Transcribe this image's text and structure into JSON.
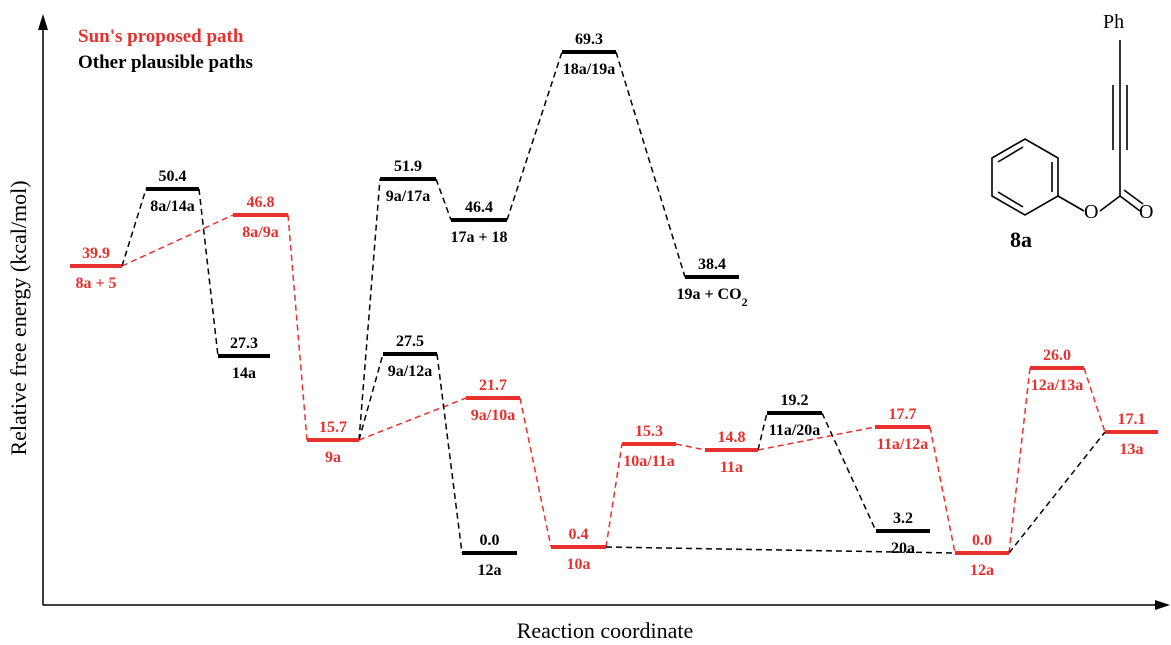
{
  "legend": {
    "proposed": "Sun's proposed path",
    "other": "Other plausible paths"
  },
  "axes": {
    "xlabel": "Reaction coordinate",
    "ylabel": "Relative free energy (kcal/mol)"
  },
  "colors": {
    "proposed": "#e8312f",
    "other": "#000000"
  },
  "molecule": {
    "name": "8a",
    "ph": "Ph",
    "o_ring": "O",
    "o_carbonyl": "O"
  },
  "levels": [
    {
      "id": "L0",
      "path": "proposed",
      "energy": "39.9",
      "label": "8a + 5"
    },
    {
      "id": "L1",
      "path": "other",
      "energy": "50.4",
      "label": "8a/14a"
    },
    {
      "id": "L2",
      "path": "proposed",
      "energy": "46.8",
      "label": "8a/9a"
    },
    {
      "id": "L3",
      "path": "other",
      "energy": "27.3",
      "label": "14a"
    },
    {
      "id": "L4",
      "path": "proposed",
      "energy": "15.7",
      "label": "9a"
    },
    {
      "id": "L5",
      "path": "other",
      "energy": "51.9",
      "label": "9a/17a"
    },
    {
      "id": "L6",
      "path": "other",
      "energy": "46.4",
      "label": "17a + 18"
    },
    {
      "id": "L7",
      "path": "other",
      "energy": "69.3",
      "label": "18a/19a"
    },
    {
      "id": "L8",
      "path": "other",
      "energy": "38.4",
      "label": "19a + CO",
      "sub": "2"
    },
    {
      "id": "L9",
      "path": "other",
      "energy": "27.5",
      "label": "9a/12a"
    },
    {
      "id": "L10",
      "path": "proposed",
      "energy": "21.7",
      "label": "9a/10a"
    },
    {
      "id": "L11",
      "path": "other",
      "energy": "0.0",
      "label": "12a"
    },
    {
      "id": "L12",
      "path": "proposed",
      "energy": "0.4",
      "label": "10a"
    },
    {
      "id": "L13",
      "path": "proposed",
      "energy": "15.3",
      "label": "10a/11a"
    },
    {
      "id": "L14",
      "path": "proposed",
      "energy": "14.8",
      "label": "11a"
    },
    {
      "id": "L15",
      "path": "other",
      "energy": "19.2",
      "label": "11a/20a"
    },
    {
      "id": "L16",
      "path": "proposed",
      "energy": "17.7",
      "label": "11a/12a"
    },
    {
      "id": "L17",
      "path": "other",
      "energy": "3.2",
      "label": "20a"
    },
    {
      "id": "L18",
      "path": "proposed",
      "energy": "0.0",
      "label": "12a"
    },
    {
      "id": "L19",
      "path": "proposed",
      "energy": "26.0",
      "label": "12a/13a"
    },
    {
      "id": "L20",
      "path": "proposed",
      "energy": "17.1",
      "label": "13a"
    }
  ],
  "connectors": [
    {
      "from": "L0",
      "to": "L2",
      "path": "proposed"
    },
    {
      "from": "L2",
      "to": "L4",
      "path": "proposed"
    },
    {
      "from": "L4",
      "to": "L10",
      "path": "proposed"
    },
    {
      "from": "L10",
      "to": "L12",
      "path": "proposed"
    },
    {
      "from": "L12",
      "to": "L13",
      "path": "proposed"
    },
    {
      "from": "L13",
      "to": "L14",
      "path": "proposed"
    },
    {
      "from": "L14",
      "to": "L16",
      "path": "proposed"
    },
    {
      "from": "L16",
      "to": "L18",
      "path": "proposed"
    },
    {
      "from": "L18",
      "to": "L19",
      "path": "proposed"
    },
    {
      "from": "L19",
      "to": "L20",
      "path": "proposed"
    },
    {
      "from": "L0",
      "to": "L1",
      "path": "other"
    },
    {
      "from": "L1",
      "to": "L3",
      "path": "other"
    },
    {
      "from": "L4",
      "to": "L5",
      "path": "other"
    },
    {
      "from": "L5",
      "to": "L6",
      "path": "other"
    },
    {
      "from": "L6",
      "to": "L7",
      "path": "other"
    },
    {
      "from": "L7",
      "to": "L8",
      "path": "other"
    },
    {
      "from": "L4",
      "to": "L9",
      "path": "other"
    },
    {
      "from": "L9",
      "to": "L11",
      "path": "other"
    },
    {
      "from": "L14",
      "to": "L15",
      "path": "other"
    },
    {
      "from": "L15",
      "to": "L17",
      "path": "other"
    },
    {
      "from": "L12",
      "to": "L18",
      "path": "other"
    },
    {
      "from": "L18",
      "to": "L20",
      "path": "other"
    }
  ]
}
